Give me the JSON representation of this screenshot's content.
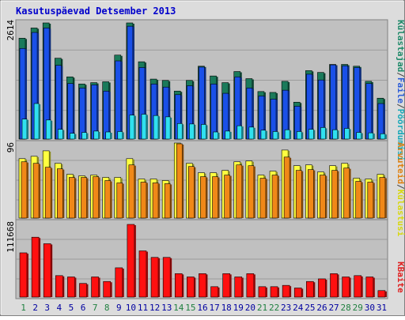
{
  "title": "Kasutuspäevad Detsember 2013",
  "colors": {
    "page_bg": "#dcdcdc",
    "plot_bg": "#c0c0c0",
    "title": "#0000cc",
    "gridline": "#909090",
    "axis_top": "#606060",
    "day_weekday": "#0000a0",
    "day_weekend": "#208040"
  },
  "legend_top": {
    "items": [
      {
        "text": "Külastajad",
        "color": "#208a6a"
      },
      {
        "text": "/",
        "color": "#444444"
      },
      {
        "text": "Faile",
        "color": "#2a5cd8"
      },
      {
        "text": "/",
        "color": "#444444"
      },
      {
        "text": "Pöördumisi",
        "color": "#18a8b8"
      }
    ]
  },
  "legend_mid": {
    "items": [
      {
        "text": "Arvuteid",
        "color": "#e08010"
      },
      {
        "text": "/",
        "color": "#444444"
      },
      {
        "text": "Külastusi",
        "color": "#d8d810"
      }
    ]
  },
  "legend_bot": {
    "items": [
      {
        "text": "KBaite",
        "color": "#e02020"
      }
    ]
  },
  "chart_data": [
    {
      "type": "bar",
      "ymax_label": "2614",
      "ylim": [
        0,
        2614
      ],
      "categories": [
        "1",
        "2",
        "3",
        "4",
        "5",
        "6",
        "7",
        "8",
        "9",
        "10",
        "11",
        "12",
        "13",
        "14",
        "15",
        "16",
        "17",
        "18",
        "19",
        "20",
        "21",
        "22",
        "23",
        "24",
        "25",
        "26",
        "27",
        "28",
        "29",
        "30",
        "31"
      ],
      "weekend": [
        1,
        7,
        8,
        14,
        15,
        21,
        22,
        28,
        29
      ],
      "series": [
        {
          "name": "Külastajad",
          "color": "#1a7a5a",
          "values": [
            2270,
            2500,
            2614,
            1820,
            1400,
            1240,
            1270,
            1290,
            1890,
            2614,
            1740,
            1350,
            1320,
            1080,
            1320,
            1640,
            1420,
            1270,
            1520,
            1360,
            1070,
            1050,
            1300,
            830,
            1540,
            1500,
            1680,
            1680,
            1640,
            1300,
            920
          ]
        },
        {
          "name": "Faile",
          "color": "#1a50e8",
          "values": [
            2040,
            2400,
            2500,
            1660,
            1250,
            1150,
            1220,
            1080,
            1760,
            2540,
            1610,
            1240,
            1170,
            1000,
            1200,
            1620,
            1240,
            1030,
            1400,
            1150,
            970,
            900,
            1100,
            740,
            1460,
            1330,
            1670,
            1650,
            1610,
            1250,
            800
          ]
        },
        {
          "name": "Pöördumisi",
          "color": "#30e0f0",
          "values": [
            450,
            800,
            430,
            220,
            130,
            150,
            180,
            160,
            170,
            540,
            560,
            530,
            500,
            350,
            340,
            330,
            160,
            180,
            300,
            270,
            200,
            170,
            210,
            170,
            220,
            260,
            210,
            240,
            150,
            140,
            120
          ]
        }
      ]
    },
    {
      "type": "bar",
      "ymax_label": "96",
      "ylim": [
        0,
        96
      ],
      "categories": [
        "1",
        "2",
        "3",
        "4",
        "5",
        "6",
        "7",
        "8",
        "9",
        "10",
        "11",
        "12",
        "13",
        "14",
        "15",
        "16",
        "17",
        "18",
        "19",
        "20",
        "21",
        "22",
        "23",
        "24",
        "25",
        "26",
        "27",
        "28",
        "29",
        "30",
        "31"
      ],
      "series": [
        {
          "name": "Arvuteid",
          "color": "#f08818",
          "values": [
            72,
            70,
            65,
            63,
            52,
            52,
            53,
            48,
            45,
            68,
            46,
            45,
            44,
            95,
            66,
            53,
            53,
            55,
            68,
            67,
            51,
            55,
            78,
            61,
            62,
            55,
            61,
            64,
            47,
            46,
            52
          ]
        },
        {
          "name": "Külastusi",
          "color": "#ffff40",
          "values": [
            76,
            79,
            86,
            70,
            56,
            54,
            55,
            52,
            52,
            76,
            50,
            50,
            48,
            96,
            70,
            58,
            58,
            61,
            72,
            73,
            55,
            60,
            87,
            67,
            68,
            59,
            67,
            70,
            51,
            50,
            56
          ]
        }
      ]
    },
    {
      "type": "bar",
      "ymax_label": "111668",
      "ylim": [
        0,
        111668
      ],
      "categories": [
        "1",
        "2",
        "3",
        "4",
        "5",
        "6",
        "7",
        "8",
        "9",
        "10",
        "11",
        "12",
        "13",
        "14",
        "15",
        "16",
        "17",
        "18",
        "19",
        "20",
        "21",
        "22",
        "23",
        "24",
        "25",
        "26",
        "27",
        "28",
        "29",
        "30",
        "31"
      ],
      "series": [
        {
          "name": "KBaite",
          "color": "#ff1010",
          "values": [
            68000,
            92000,
            82000,
            33000,
            31000,
            21000,
            31000,
            24000,
            45000,
            111668,
            71000,
            61000,
            61000,
            36000,
            31000,
            36000,
            16000,
            36000,
            31000,
            36000,
            16000,
            16000,
            18000,
            14000,
            24000,
            28000,
            36000,
            31000,
            33000,
            31000,
            10000
          ]
        }
      ]
    }
  ]
}
